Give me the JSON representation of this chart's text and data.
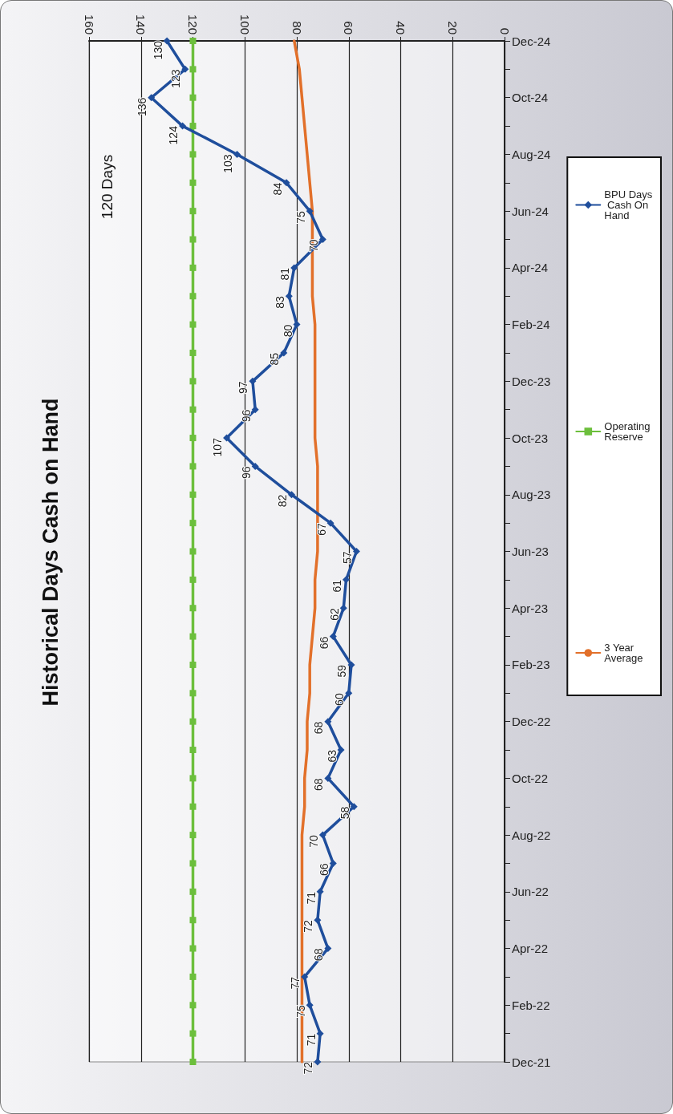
{
  "chart_data": {
    "type": "line",
    "title": "Historical Days Cash on Hand",
    "orientation": "horizontal",
    "categories": [
      "Dec-24",
      null,
      "Oct-24",
      null,
      "Aug-24",
      null,
      "Jun-24",
      null,
      "Apr-24",
      null,
      "Feb-24",
      null,
      "Dec-23",
      null,
      "Oct-23",
      null,
      "Aug-23",
      null,
      "Jun-23",
      null,
      "Apr-23",
      null,
      "Feb-23",
      null,
      "Dec-22",
      null,
      "Oct-22",
      null,
      "Aug-22",
      null,
      "Jun-22",
      null,
      "Apr-22",
      null,
      "Feb-22",
      null,
      "Dec-21"
    ],
    "series": [
      {
        "name": "BPU Days Cash On Hand",
        "color": "#1f4e9c",
        "marker": "diamond",
        "values": [
          130,
          123,
          136,
          124,
          103,
          84,
          75,
          70,
          81,
          83,
          80,
          85,
          97,
          96,
          107,
          96,
          82,
          67,
          57,
          61,
          62,
          66,
          59,
          60,
          68,
          63,
          68,
          58,
          70,
          66,
          71,
          72,
          68,
          77,
          75,
          71,
          72
        ],
        "value_labels": [
          "130",
          "123",
          "136",
          "124",
          "103",
          "84",
          "75",
          "70",
          "81",
          "83",
          "80",
          "85",
          "97",
          "96",
          "107",
          "96",
          "82",
          "67",
          "57",
          "61",
          "62",
          "66",
          "59",
          "60",
          "68",
          "63",
          "68",
          "58",
          "70",
          "66",
          "71",
          "72",
          "68",
          "77",
          "75",
          "71",
          "72"
        ]
      },
      {
        "name": "Operating Reserve",
        "color": "#6cbf3c",
        "marker": "square",
        "values": [
          120,
          120,
          120,
          120,
          120,
          120,
          120,
          120,
          120,
          120,
          120,
          120,
          120,
          120,
          120,
          120,
          120,
          120,
          120,
          120,
          120,
          120,
          120,
          120,
          120,
          120,
          120,
          120,
          120,
          120,
          120,
          120,
          120,
          120,
          120,
          120,
          120
        ]
      },
      {
        "name": "3 Year Average",
        "color": "#e2702a",
        "marker": "none",
        "values": [
          81,
          79,
          78,
          77,
          76,
          75,
          74,
          74,
          74,
          74,
          73,
          73,
          73,
          73,
          73,
          72,
          72,
          72,
          72,
          73,
          73,
          74,
          75,
          75,
          76,
          76,
          77,
          77,
          78,
          78,
          78,
          78,
          78,
          78,
          78,
          78,
          78
        ]
      }
    ],
    "xlim": [
      160,
      0
    ],
    "xticks": [
      160,
      140,
      120,
      100,
      80,
      60,
      40,
      20,
      0
    ],
    "grid": "x",
    "legend": "right",
    "annotations": [
      "120 Days"
    ]
  }
}
